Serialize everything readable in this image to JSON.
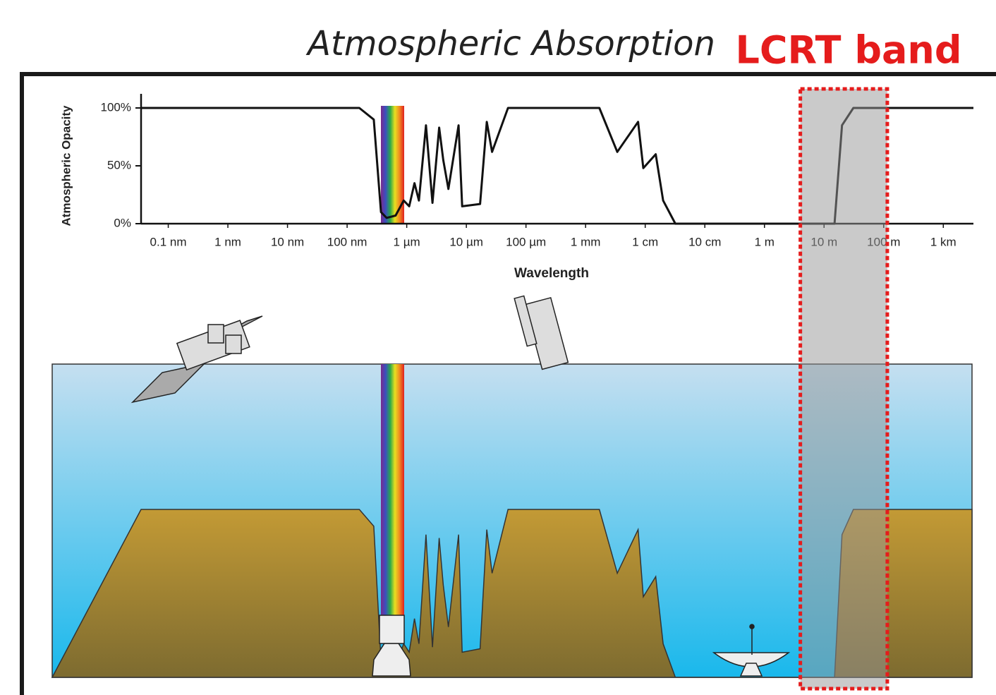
{
  "chart_data": {
    "type": "line",
    "title": "Atmospheric Absorption",
    "annotation": "LCRT band",
    "band": [
      4,
      115
    ],
    "xlabel": "Wavelength",
    "ylabel": "Atmospheric Opacity",
    "xscale": "log",
    "xlim": [
      3.5e-11,
      3200
    ],
    "xticks": [
      {
        "value": 1e-10,
        "label": "0.1 nm"
      },
      {
        "value": 1e-09,
        "label": "1 nm"
      },
      {
        "value": 1e-08,
        "label": "10 nm"
      },
      {
        "value": 1e-07,
        "label": "100 nm"
      },
      {
        "value": 1e-06,
        "label": "1 µm"
      },
      {
        "value": 1e-05,
        "label": "10 µm"
      },
      {
        "value": 0.0001,
        "label": "100 µm"
      },
      {
        "value": 0.001,
        "label": "1 mm"
      },
      {
        "value": 0.01,
        "label": "1 cm"
      },
      {
        "value": 0.1,
        "label": "10 cm"
      },
      {
        "value": 1,
        "label": "1 m"
      },
      {
        "value": 10,
        "label": "10 m"
      },
      {
        "value": 100,
        "label": "100 m"
      },
      {
        "value": 1000,
        "label": "1 km"
      }
    ],
    "ylim": [
      0,
      100
    ],
    "yticks": [
      {
        "value": 0,
        "label": "0%"
      },
      {
        "value": 50,
        "label": "50%"
      },
      {
        "value": 100,
        "label": "100%"
      }
    ],
    "x": [
      3.5e-11,
      1.6e-07,
      2.8e-07,
      3.7e-07,
      4.6e-07,
      6.5e-07,
      8.9e-07,
      1.1e-06,
      1.35e-06,
      1.6e-06,
      2.1e-06,
      2.7e-06,
      3.5e-06,
      4.1e-06,
      5e-06,
      7.4e-06,
      8.5e-06,
      1.7e-05,
      2.2e-05,
      2.7e-05,
      5e-05,
      0.0017,
      0.0034,
      0.0076,
      0.0093,
      0.015,
      0.02,
      0.032,
      15,
      20,
      31,
      3200
    ],
    "series": [
      {
        "color": "#111111",
        "values": [
          100,
          100,
          90,
          10,
          5,
          7,
          20,
          15,
          35,
          20,
          85,
          18,
          83,
          55,
          30,
          85,
          15,
          17,
          88,
          62,
          100,
          100,
          62,
          88,
          48,
          60,
          20,
          0,
          0,
          85,
          100,
          100
        ]
      }
    ]
  }
}
